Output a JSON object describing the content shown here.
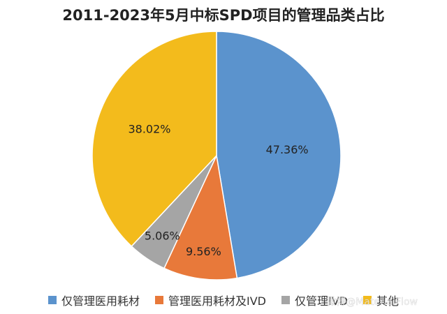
{
  "chart_data": {
    "type": "pie",
    "title": "2011-2023年5月中标SPD项目的管理品类占比",
    "slices": [
      {
        "label": "仅管理医用耗材",
        "value": 47.36,
        "value_label": "47.36%",
        "color": "#5b93cd"
      },
      {
        "label": "管理医用耗材及IVD",
        "value": 9.56,
        "value_label": "9.56%",
        "color": "#e8793a"
      },
      {
        "label": "仅管理IVD",
        "value": 5.06,
        "value_label": "5.06%",
        "color": "#a5a5a5"
      },
      {
        "label": "其他",
        "value": 38.02,
        "value_label": "38.02%",
        "color": "#f3bb1c"
      }
    ],
    "legend_position": "bottom"
  },
  "watermark": "微博@MaterialFlow"
}
